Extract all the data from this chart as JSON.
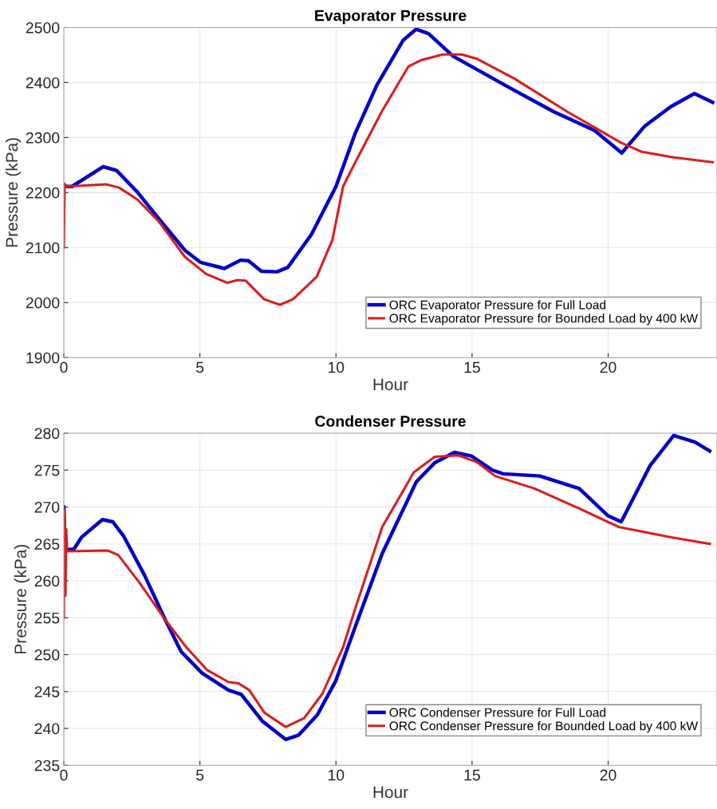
{
  "chart_data": [
    {
      "type": "line",
      "title": "Evaporator Pressure",
      "xlabel": "Hour",
      "ylabel": "Pressure (kPa)",
      "xlim": [
        0,
        24
      ],
      "ylim": [
        1900,
        2500
      ],
      "xticks": [
        0,
        5,
        10,
        15,
        20
      ],
      "yticks": [
        1900,
        2000,
        2100,
        2200,
        2300,
        2400,
        2500
      ],
      "grid": true,
      "legend": "bottom right",
      "line_style": "solid",
      "series": [
        {
          "name": "ORC Evaporator Pressure for Full Load",
          "color": "#0000cc",
          "x": [
            0.05,
            0.3,
            1.45,
            1.94,
            2.7,
            3.48,
            4.45,
            5.03,
            5.9,
            6.49,
            6.78,
            7.26,
            7.84,
            8.23,
            9.1,
            10.0,
            10.71,
            11.5,
            12.47,
            12.95,
            13.4,
            14.3,
            16.4,
            18.0,
            19.5,
            20.5,
            21.33,
            22.3,
            23.17,
            23.84
          ],
          "values": [
            2211,
            2211,
            2247,
            2240,
            2201,
            2153,
            2095,
            2073,
            2062,
            2077,
            2076,
            2057,
            2056,
            2064,
            2124,
            2211,
            2308,
            2395,
            2477,
            2497,
            2489,
            2448,
            2390,
            2347,
            2313,
            2272,
            2320,
            2356,
            2380,
            2364
          ]
        },
        {
          "name": "ORC Evaporator Pressure for Bounded Load by 400 kW",
          "color": "#dd1c1c",
          "x": [
            0.0,
            0.03,
            0.1,
            1.55,
            2.03,
            2.71,
            3.48,
            4.45,
            5.23,
            6.0,
            6.39,
            6.68,
            7.36,
            7.94,
            8.42,
            9.29,
            9.87,
            10.26,
            10.71,
            11.68,
            12.66,
            13.14,
            13.93,
            14.61,
            15.19,
            16.56,
            18.5,
            20.46,
            21.24,
            22.4,
            23.84
          ],
          "values": [
            2100,
            2216,
            2211,
            2215,
            2209,
            2187,
            2148,
            2083,
            2052,
            2036,
            2041,
            2040,
            2006,
            1996,
            2006,
            2047,
            2114,
            2211,
            2255,
            2347,
            2429,
            2441,
            2451,
            2451,
            2443,
            2407,
            2347,
            2291,
            2274,
            2264,
            2255
          ]
        }
      ]
    },
    {
      "type": "line",
      "title": "Condenser Pressure",
      "xlabel": "Hour",
      "ylabel": "Pressure (kPa)",
      "xlim": [
        0,
        24
      ],
      "ylim": [
        235,
        280
      ],
      "xticks": [
        0,
        5,
        10,
        15,
        20
      ],
      "yticks": [
        235,
        240,
        245,
        250,
        255,
        260,
        265,
        270,
        275,
        280
      ],
      "grid": true,
      "legend": "bottom right",
      "line_style": "solid",
      "series": [
        {
          "name": "ORC Condenser Pressure for Full Load",
          "color": "#0000cc",
          "x": [
            0.0,
            0.05,
            0.37,
            0.65,
            1.42,
            1.8,
            2.19,
            2.96,
            3.73,
            4.31,
            5.08,
            6.04,
            6.52,
            7.29,
            8.15,
            8.63,
            9.31,
            10.0,
            10.73,
            11.7,
            12.95,
            13.63,
            14.35,
            14.98,
            15.75,
            16.14,
            17.49,
            18.94,
            20.0,
            20.48,
            21.54,
            22.41,
            23.19,
            23.73
          ],
          "values": [
            270.0,
            264.2,
            264.3,
            265.9,
            268.3,
            268.0,
            266.1,
            260.8,
            254.7,
            250.4,
            247.5,
            245.2,
            244.6,
            241.0,
            238.5,
            239.1,
            241.8,
            246.5,
            254.0,
            263.7,
            273.4,
            276.0,
            277.4,
            276.9,
            275.0,
            274.5,
            274.2,
            272.5,
            268.8,
            268.0,
            275.6,
            279.7,
            278.8,
            277.6
          ]
        },
        {
          "name": "ORC Condenser Pressure for Bounded Load by 400 kW",
          "color": "#dd1c1c",
          "x": [
            0.0,
            0.03,
            0.06,
            0.09,
            0.12,
            1.62,
            2.0,
            2.77,
            3.73,
            4.5,
            5.27,
            6.04,
            6.42,
            6.81,
            7.38,
            8.15,
            8.83,
            9.5,
            10.27,
            10.73,
            11.7,
            12.86,
            13.63,
            14.5,
            15.17,
            15.85,
            17.3,
            18.94,
            20.39,
            22.32,
            23.74
          ],
          "values": [
            255.0,
            269.5,
            258.0,
            267.0,
            264.0,
            264.1,
            263.5,
            259.8,
            254.7,
            251.0,
            247.9,
            246.3,
            246.1,
            245.2,
            242.1,
            240.2,
            241.4,
            244.7,
            251.1,
            256.5,
            267.3,
            274.7,
            276.8,
            277.0,
            276.1,
            274.2,
            272.5,
            269.8,
            267.3,
            265.9,
            265.0
          ]
        }
      ]
    }
  ]
}
